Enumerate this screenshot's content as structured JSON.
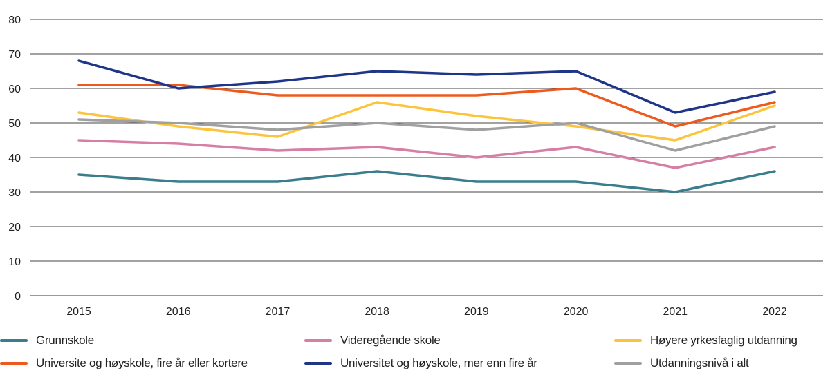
{
  "chart_data": {
    "type": "line",
    "title": "",
    "xlabel": "",
    "ylabel": "",
    "x": [
      "2015",
      "2016",
      "2017",
      "2018",
      "2019",
      "2020",
      "2021",
      "2022"
    ],
    "ylim": [
      0,
      80
    ],
    "yticks": [
      "0",
      "10",
      "20",
      "30",
      "40",
      "50",
      "60",
      "70",
      "80"
    ],
    "grid": "horizontal",
    "legend_position": "bottom",
    "series": [
      {
        "name": "Grunnskole",
        "color": "#3a7d8c",
        "values": [
          35,
          33,
          33,
          36,
          33,
          33,
          30,
          36
        ]
      },
      {
        "name": "Videregående skole",
        "color": "#d67fa5",
        "values": [
          45,
          44,
          42,
          43,
          40,
          43,
          37,
          43
        ]
      },
      {
        "name": "Høyere yrkesfaglig utdanning",
        "color": "#fcc43d",
        "values": [
          53,
          49,
          46,
          56,
          52,
          49,
          45,
          55
        ]
      },
      {
        "name": "Universite og høyskole, fire år eller kortere",
        "color": "#ee5a1d",
        "values": [
          61,
          61,
          58,
          58,
          58,
          60,
          49,
          56
        ]
      },
      {
        "name": "Universitet og høyskole, mer enn fire år",
        "color": "#1f3688",
        "values": [
          68,
          60,
          62,
          65,
          64,
          65,
          53,
          59
        ]
      },
      {
        "name": "Utdanningsnivå i alt",
        "color": "#a0a0a0",
        "values": [
          51,
          50,
          48,
          50,
          48,
          50,
          42,
          49
        ]
      }
    ]
  }
}
